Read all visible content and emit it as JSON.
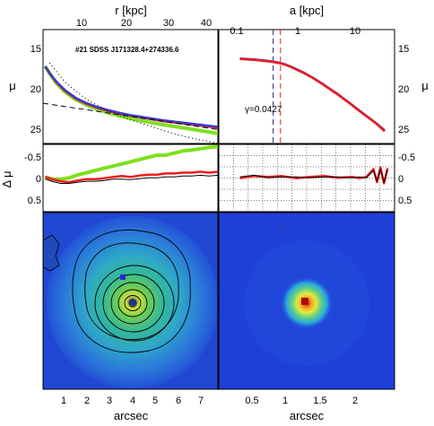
{
  "figure": {
    "annotation": "#21 SDSS J171328.4+274336.6",
    "colors": {
      "green": "#7fe01e",
      "red": "#ee1c1c",
      "blue": "#3b3bcc",
      "magenta": "#aa2daa",
      "image_bg": "#1f40d8"
    }
  },
  "chart_data": [
    {
      "type": "line",
      "panel": "top-left",
      "title": "",
      "xlabel_top": "r [kpc]",
      "ylabel": "μ",
      "top_ticks": [
        "10",
        "20",
        "30",
        "40"
      ],
      "y_ticks": [
        "15",
        "20",
        "25"
      ],
      "ylim": [
        27,
        14
      ],
      "xlim_arcsec": [
        0,
        8
      ],
      "series": [
        {
          "color": "#7fe01e",
          "x": [
            0.1,
            0.3,
            0.6,
            1,
            1.5,
            2,
            2.5,
            3,
            3.5,
            4,
            4.5,
            5,
            5.5,
            6,
            6.5,
            7,
            7.5,
            8
          ],
          "y": [
            18.2,
            19.0,
            20.1,
            21.1,
            22.0,
            22.6,
            23.1,
            23.5,
            23.85,
            24.15,
            24.4,
            24.65,
            24.85,
            25.05,
            25.25,
            25.45,
            25.65,
            25.85
          ]
        },
        {
          "color": "#ee1c1c",
          "x": [
            0.1,
            0.3,
            0.6,
            1,
            1.5,
            2,
            2.5,
            3,
            3.5,
            4,
            4.5,
            5,
            5.5,
            6,
            6.5,
            7,
            7.5,
            8
          ],
          "y": [
            18.2,
            19.0,
            20.0,
            21.0,
            21.9,
            22.5,
            22.95,
            23.3,
            23.6,
            23.85,
            24.05,
            24.25,
            24.45,
            24.6,
            24.75,
            24.9,
            25.05,
            25.2
          ]
        },
        {
          "color": "#3b3bcc",
          "x": [
            0.1,
            0.3,
            0.6,
            1,
            1.5,
            2,
            2.5,
            3,
            3.5,
            4,
            4.5,
            5,
            5.5,
            6,
            6.5,
            7,
            7.5,
            8
          ],
          "y": [
            18.2,
            18.95,
            19.9,
            20.9,
            21.8,
            22.4,
            22.85,
            23.2,
            23.5,
            23.75,
            23.95,
            24.15,
            24.35,
            24.5,
            24.65,
            24.8,
            24.95,
            25.1
          ]
        },
        {
          "color": "#000000",
          "dashed": true,
          "x": [
            0,
            8
          ],
          "y": [
            22.4,
            25.4
          ]
        },
        {
          "color": "#000000",
          "dotted": true,
          "x": [
            0.3,
            1,
            2,
            3,
            4,
            5,
            6,
            7,
            8
          ],
          "y": [
            17.8,
            20.0,
            22.0,
            23.3,
            24.3,
            25.1,
            25.9,
            26.5,
            27.0
          ]
        }
      ]
    },
    {
      "type": "line",
      "panel": "top-right",
      "title": "",
      "xlabel_top": "a [kpc]",
      "ylabel": "μ",
      "top_ticks": [
        "0.1",
        "1",
        "10"
      ],
      "y_ticks": [
        "15",
        "20",
        "25"
      ],
      "ylim": [
        27,
        14
      ],
      "xlog": true,
      "xlim": [
        0.07,
        40
      ],
      "annotation": "γ=0.0427",
      "vlines": [
        {
          "x": 0.5,
          "color": "#1a1a70"
        },
        {
          "x": 0.65,
          "color": "#ee1c1c"
        }
      ],
      "series": [
        {
          "color": "#3b3bcc",
          "x": [
            0.15,
            0.25,
            0.4,
            0.6,
            0.8,
            1,
            1.5,
            2,
            3,
            5,
            8,
            12,
            20,
            28
          ],
          "y": [
            17.3,
            17.4,
            17.55,
            17.75,
            18.0,
            18.3,
            18.9,
            19.4,
            20.2,
            21.3,
            22.4,
            23.4,
            24.6,
            25.5
          ]
        },
        {
          "color": "#ee1c1c",
          "x": [
            0.15,
            0.25,
            0.4,
            0.6,
            0.8,
            1,
            1.5,
            2,
            3,
            5,
            8,
            12,
            20,
            28
          ],
          "y": [
            17.35,
            17.45,
            17.6,
            17.8,
            18.05,
            18.35,
            18.95,
            19.45,
            20.25,
            21.35,
            22.45,
            23.45,
            24.65,
            25.6
          ]
        }
      ]
    },
    {
      "type": "line",
      "panel": "middle-left",
      "title": "",
      "ylabel": "Δ μ",
      "y_ticks": [
        "-0.5",
        "0",
        "0.5"
      ],
      "ylim": [
        0.8,
        -0.75
      ],
      "xlim_arcsec": [
        0,
        8
      ],
      "series": [
        {
          "color": "#7fe01e",
          "x": [
            0.1,
            0.4,
            0.8,
            1.2,
            1.6,
            2,
            2.4,
            2.8,
            3.2,
            3.6,
            4,
            4.4,
            4.8,
            5.2,
            5.6,
            6,
            6.4,
            6.8,
            7.2,
            7.6,
            8
          ],
          "y": [
            0,
            0.05,
            0.05,
            0.02,
            -0.05,
            -0.1,
            -0.15,
            -0.2,
            -0.25,
            -0.3,
            -0.35,
            -0.4,
            -0.45,
            -0.5,
            -0.5,
            -0.55,
            -0.6,
            -0.62,
            -0.65,
            -0.68,
            -0.7
          ]
        },
        {
          "color": "#ee1c1c",
          "x": [
            0.1,
            0.4,
            0.8,
            1.2,
            1.6,
            2,
            2.4,
            2.8,
            3.2,
            3.6,
            4,
            4.4,
            4.8,
            5.2,
            5.6,
            6,
            6.4,
            6.8,
            7.2,
            7.6,
            8
          ],
          "y": [
            0,
            0.05,
            0.1,
            0.12,
            0.08,
            0.05,
            0.05,
            0.03,
            0.0,
            -0.02,
            0,
            -0.03,
            -0.05,
            -0.05,
            -0.08,
            -0.08,
            -0.1,
            -0.1,
            -0.12,
            -0.1,
            -0.12
          ]
        },
        {
          "color": "#000000",
          "x": [
            0.1,
            0.4,
            0.8,
            1.2,
            1.6,
            2,
            2.4,
            2.8,
            3.2,
            3.6,
            4,
            4.4,
            4.8,
            5.2,
            5.6,
            6,
            6.4,
            6.8,
            7.2,
            7.6,
            8
          ],
          "y": [
            0.05,
            0.1,
            0.15,
            0.15,
            0.12,
            0.1,
            0.1,
            0.08,
            0.05,
            0.05,
            0.06,
            0.04,
            0.02,
            0.02,
            0.0,
            0.0,
            -0.02,
            -0.02,
            -0.04,
            -0.02,
            -0.04
          ]
        }
      ]
    },
    {
      "type": "line",
      "panel": "middle-right",
      "title": "",
      "y_ticks": [
        "-0.5",
        "0",
        "0.5"
      ],
      "ylim": [
        0.8,
        -0.75
      ],
      "xlim_arcsec": [
        0.2,
        2.7
      ],
      "series": [
        {
          "color": "#ee1c1c",
          "x": [
            0.5,
            0.7,
            0.9,
            1.1,
            1.3,
            1.5,
            1.7,
            1.9,
            2.1,
            2.2,
            2.3,
            2.4,
            2.45,
            2.5,
            2.55,
            2.6
          ],
          "y": [
            0.03,
            -0.02,
            0.0,
            -0.02,
            0.03,
            0.0,
            -0.02,
            0.02,
            0.0,
            0.03,
            0.0,
            -0.18,
            0.12,
            -0.22,
            0.15,
            -0.2
          ]
        },
        {
          "color": "#000000",
          "x": [
            0.5,
            0.7,
            0.9,
            1.1,
            1.3,
            1.5,
            1.7,
            1.9,
            2.1,
            2.2,
            2.3,
            2.4,
            2.45,
            2.5,
            2.55,
            2.6
          ],
          "y": [
            0.0,
            -0.04,
            0.02,
            0.0,
            0.0,
            0.02,
            0.0,
            0.0,
            0.02,
            0.0,
            0.02,
            -0.15,
            0.1,
            -0.18,
            0.12,
            -0.16
          ]
        }
      ]
    }
  ],
  "bottom_axes": {
    "left": {
      "xlabel": "arcsec",
      "ticks": [
        "1",
        "2",
        "3",
        "4",
        "5",
        "6",
        "7"
      ]
    },
    "right": {
      "xlabel": "arcsec",
      "ticks": [
        "0.5",
        "1",
        "1.5",
        "2"
      ]
    }
  }
}
